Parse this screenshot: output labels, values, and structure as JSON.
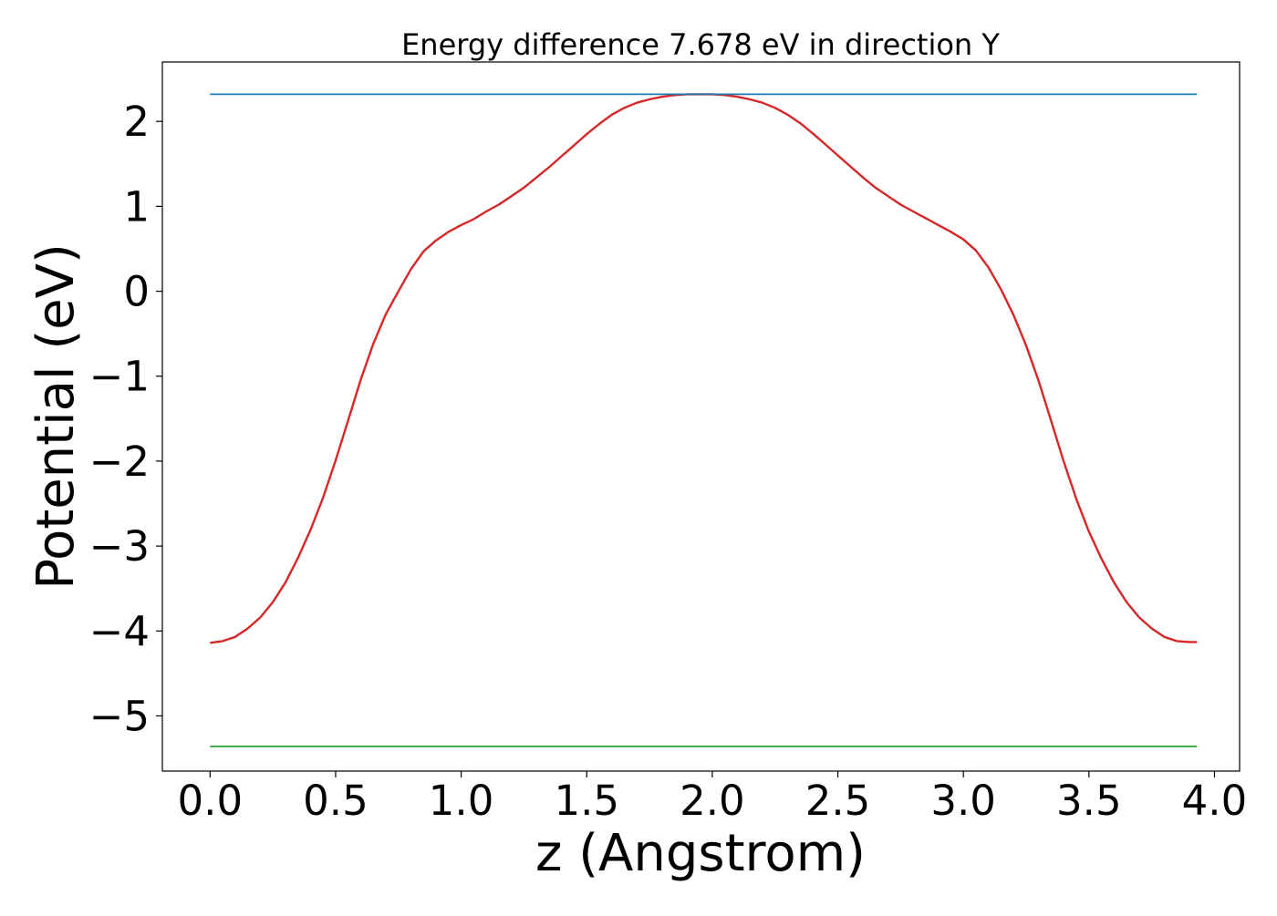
{
  "chart_data": {
    "type": "line",
    "title": "Energy difference 7.678 eV in direction Y",
    "xlabel": "z (Angstrom)",
    "ylabel": "Potential (eV)",
    "xlim": [
      -0.19,
      4.1
    ],
    "ylim": [
      -5.65,
      2.7
    ],
    "xticks": [
      0.0,
      0.5,
      1.0,
      1.5,
      2.0,
      2.5,
      3.0,
      3.5,
      4.0
    ],
    "xtick_labels": [
      "0.0",
      "0.5",
      "1.0",
      "1.5",
      "2.0",
      "2.5",
      "3.0",
      "3.5",
      "4.0"
    ],
    "yticks": [
      -5,
      -4,
      -3,
      -2,
      -1,
      0,
      1,
      2
    ],
    "ytick_labels": [
      "−5",
      "−4",
      "−3",
      "−2",
      "−1",
      "0",
      "1",
      "2"
    ],
    "grid": false,
    "legend": "none",
    "series": [
      {
        "color": "#d62728",
        "x": [
          0.0,
          0.05,
          0.1,
          0.15,
          0.2,
          0.25,
          0.3,
          0.35,
          0.4,
          0.45,
          0.5,
          0.55,
          0.6,
          0.65,
          0.7,
          0.75,
          0.8,
          0.85,
          0.9,
          0.95,
          1.0,
          1.05,
          1.1,
          1.15,
          1.2,
          1.25,
          1.3,
          1.35,
          1.4,
          1.45,
          1.5,
          1.55,
          1.6,
          1.65,
          1.7,
          1.75,
          1.8,
          1.85,
          1.9,
          1.95,
          2.0,
          2.05,
          2.1,
          2.15,
          2.2,
          2.25,
          2.3,
          2.35,
          2.4,
          2.45,
          2.5,
          2.55,
          2.6,
          2.65,
          2.7,
          2.75,
          2.8,
          2.85,
          2.9,
          2.95,
          3.0,
          3.05,
          3.1,
          3.15,
          3.2,
          3.25,
          3.3,
          3.35,
          3.4,
          3.45,
          3.5,
          3.55,
          3.6,
          3.65,
          3.7,
          3.75,
          3.8,
          3.85,
          3.9,
          3.93
        ],
        "y": [
          -4.14,
          -4.12,
          -4.07,
          -3.97,
          -3.84,
          -3.66,
          -3.43,
          -3.14,
          -2.81,
          -2.43,
          -1.99,
          -1.52,
          -1.04,
          -0.62,
          -0.27,
          0.0,
          0.26,
          0.47,
          0.6,
          0.7,
          0.78,
          0.85,
          0.94,
          1.02,
          1.12,
          1.22,
          1.34,
          1.46,
          1.59,
          1.72,
          1.85,
          1.97,
          2.08,
          2.16,
          2.22,
          2.26,
          2.29,
          2.31,
          2.32,
          2.32,
          2.32,
          2.31,
          2.29,
          2.26,
          2.22,
          2.16,
          2.08,
          1.98,
          1.86,
          1.73,
          1.6,
          1.47,
          1.34,
          1.22,
          1.12,
          1.02,
          0.94,
          0.86,
          0.78,
          0.7,
          0.61,
          0.48,
          0.28,
          0.02,
          -0.28,
          -0.64,
          -1.06,
          -1.53,
          -2.01,
          -2.45,
          -2.83,
          -3.15,
          -3.43,
          -3.66,
          -3.84,
          -3.97,
          -4.07,
          -4.12,
          -4.13,
          -4.13
        ]
      },
      {
        "color": "#1f77b4",
        "x": [
          0.0,
          3.93
        ],
        "y": [
          2.32,
          2.32
        ]
      },
      {
        "color": "#2ca02c",
        "x": [
          0.0,
          3.93
        ],
        "y": [
          -5.36,
          -5.36
        ]
      }
    ]
  }
}
